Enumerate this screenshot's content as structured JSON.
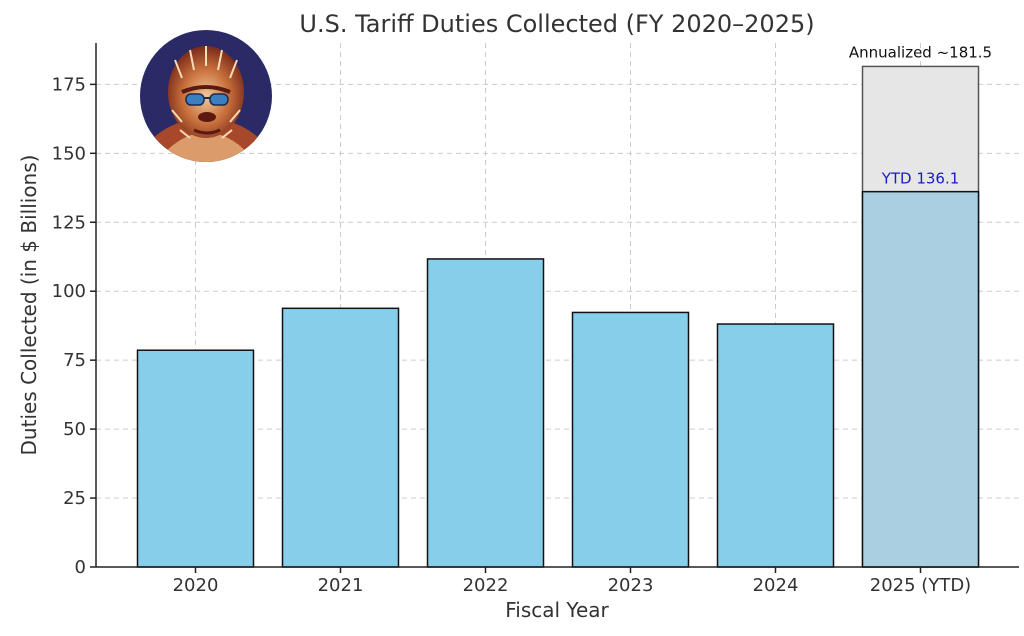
{
  "chart_data": {
    "type": "bar",
    "title": "U.S. Tariff Duties Collected (FY 2020–2025)",
    "xlabel": "Fiscal Year",
    "ylabel": "Duties Collected (in $ Billions)",
    "categories": [
      "2020",
      "2021",
      "2022",
      "2023",
      "2024",
      "2025 (YTD)"
    ],
    "values": [
      78.6,
      93.8,
      111.7,
      92.3,
      88.1,
      136.1
    ],
    "projected": {
      "category": "2025 (YTD)",
      "value": 181.5
    },
    "ylim": [
      0,
      190
    ],
    "yticks": [
      0,
      25,
      50,
      75,
      100,
      125,
      150,
      175
    ],
    "grid": true,
    "annotations": [
      {
        "text": "YTD 136.1",
        "color": "#1a1acc"
      },
      {
        "text": "Annualized ~181.5",
        "color": "#111111"
      }
    ],
    "colors": {
      "bar": "#87ceeb",
      "ytd_bar": "#a9cfe0",
      "projected_bar": "#e6e6e6"
    }
  },
  "logo": {
    "icon": "gorilla-avatar-icon"
  }
}
